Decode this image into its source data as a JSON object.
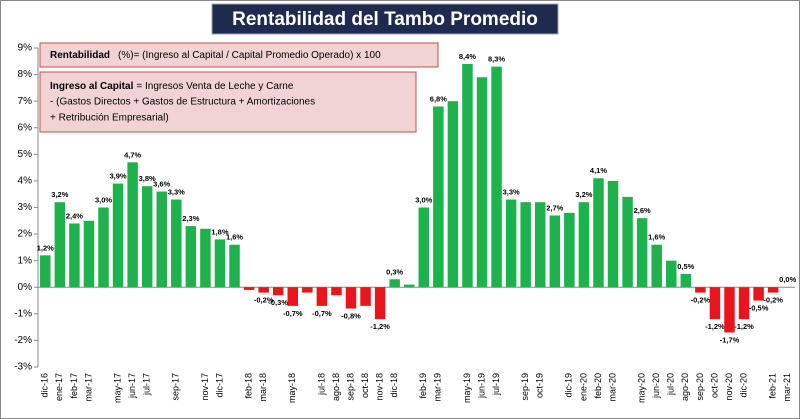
{
  "chart_data": {
    "type": "bar",
    "title": "Rentabilidad del Tambo Promedio",
    "formula_box": {
      "term": "Rentabilidad",
      "text": "(%)= (Ingreso al Capital / Capital Promedio Operado) x 100"
    },
    "definition_box": {
      "term": "Ingreso al Capital",
      "lines": [
        "= Ingresos Venta de Leche  y Carne",
        "-  (Gastos Directos + Gastos de Estructura  + Amortizaciones",
        "+  Retribución Empresarial)"
      ]
    },
    "categories": [
      "dic-16",
      "ene-17",
      "feb-17",
      "mar-17",
      null,
      "may-17",
      "jun-17",
      "jul-17",
      null,
      "sep-17",
      null,
      "nov-17",
      "dic-17",
      null,
      "feb-18",
      "mar-18",
      null,
      "may-18",
      null,
      "jul-18",
      "ago-18",
      "sep-18",
      "oct-18",
      "nov-18",
      "dic-18",
      null,
      "feb-19",
      "mar-19",
      null,
      "may-19",
      "jun-19",
      "jul-19",
      null,
      "sep-19",
      "oct-19",
      null,
      "dic-19",
      "ene-20",
      "feb-20",
      "mar-20",
      null,
      "may-20",
      "jun-20",
      "jul-20",
      "ago-20",
      "sep-20",
      "oct-20",
      "nov-20",
      "dic-20",
      null,
      "feb-21",
      "mar-21"
    ],
    "values": [
      1.2,
      3.2,
      2.4,
      2.5,
      3.0,
      3.9,
      4.7,
      3.8,
      3.6,
      3.3,
      2.3,
      2.2,
      1.8,
      1.6,
      -0.1,
      -0.2,
      -0.3,
      -0.7,
      -0.2,
      -0.7,
      -0.3,
      -0.8,
      -0.7,
      -1.2,
      0.3,
      0.1,
      3.0,
      6.8,
      7.0,
      8.4,
      7.9,
      8.3,
      3.3,
      3.2,
      3.2,
      2.7,
      2.8,
      3.2,
      4.1,
      4.0,
      3.4,
      2.6,
      1.6,
      1.0,
      0.5,
      -0.2,
      -1.2,
      -1.7,
      -1.2,
      -0.5,
      -0.2,
      0.0
    ],
    "value_labels": [
      "1,2%",
      "3,2%",
      "2,4%",
      null,
      "3,0%",
      "3,9%",
      "4,7%",
      "3,8%",
      "3,6%",
      "3,3%",
      "2,3%",
      null,
      "1,8%",
      "1,6%",
      null,
      "-0,2%",
      "-0,3%",
      "-0,7%",
      null,
      "-0,7%",
      null,
      "-0,8%",
      null,
      "-1,2%",
      "0,3%",
      null,
      "3,0%",
      "6,8%",
      null,
      "8,4%",
      null,
      "8,3%",
      "3,3%",
      null,
      null,
      "2,7%",
      null,
      "3,2%",
      "4,1%",
      null,
      null,
      "2,6%",
      "1,6%",
      null,
      "0,5%",
      "-0,2%",
      "-1,2%",
      "-1,7%",
      "-1,2%",
      "-0,5%",
      "-0,2%",
      "0,0%"
    ],
    "color_positive": "#1db24b",
    "color_negative": "#e8151b",
    "ylim": [
      -3,
      9
    ],
    "yticks": [
      {
        "value": -3,
        "label": "-3%"
      },
      {
        "value": -2,
        "label": "-2%"
      },
      {
        "value": -1,
        "label": "-1%"
      },
      {
        "value": 0,
        "label": "0%"
      },
      {
        "value": 1,
        "label": "1%"
      },
      {
        "value": 2,
        "label": "2%"
      },
      {
        "value": 3,
        "label": "3%"
      },
      {
        "value": 4,
        "label": "4%"
      },
      {
        "value": 5,
        "label": "5%"
      },
      {
        "value": 6,
        "label": "6%"
      },
      {
        "value": 7,
        "label": "7%"
      },
      {
        "value": 8,
        "label": "8%"
      },
      {
        "value": 9,
        "label": "9%"
      }
    ],
    "grid": false
  }
}
